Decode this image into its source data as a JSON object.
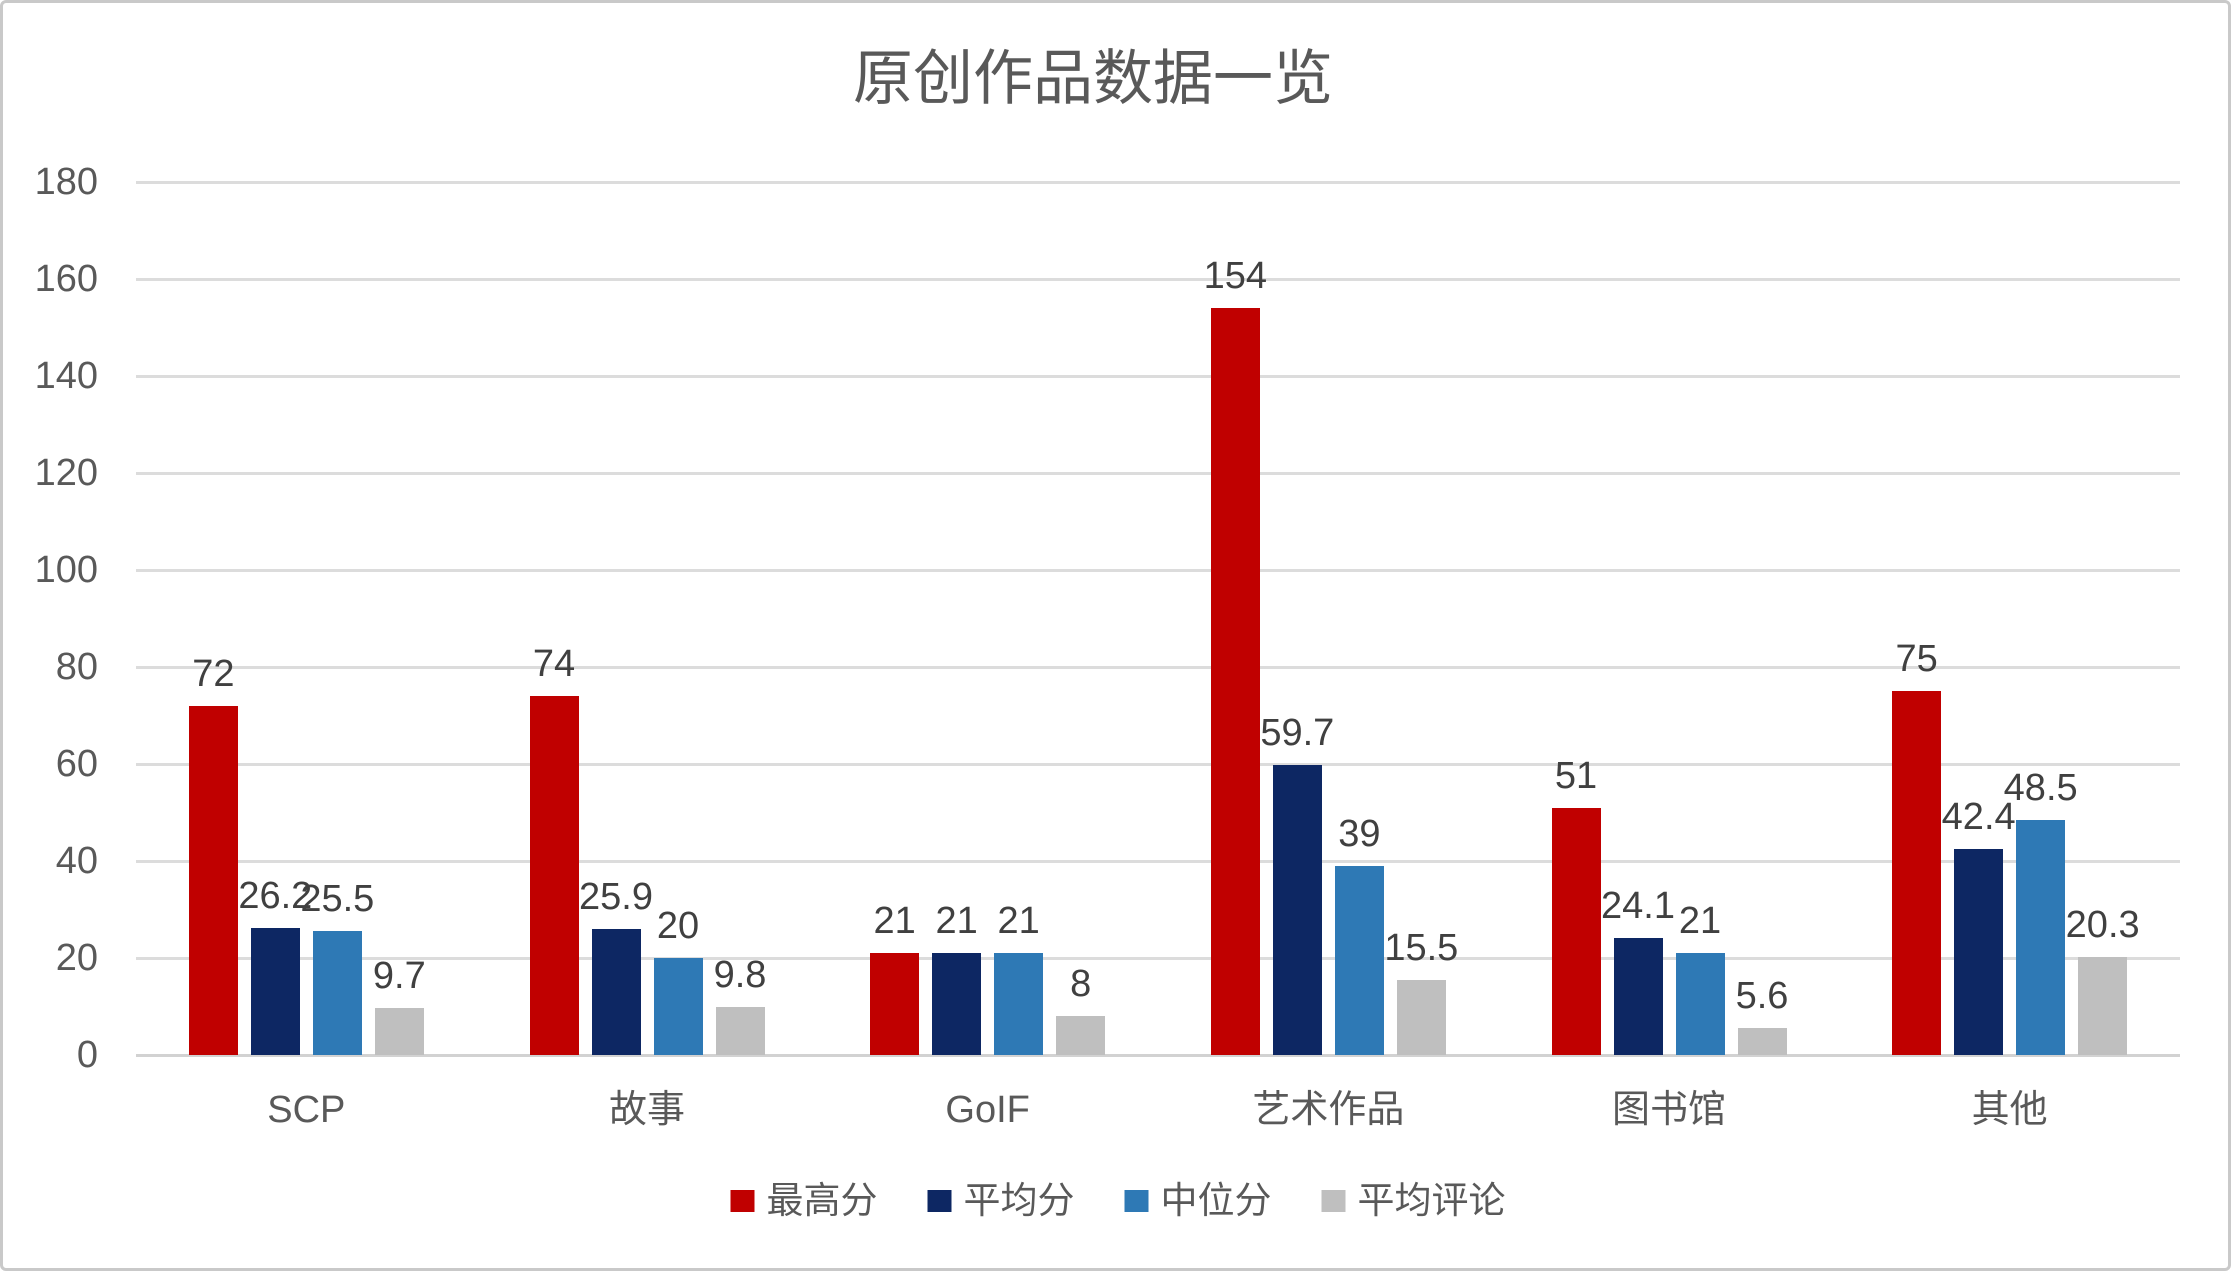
{
  "chart_data": {
    "type": "bar",
    "title": "原创作品数据一览",
    "categories": [
      "SCP",
      "故事",
      "GoIF",
      "艺术作品",
      "图书馆",
      "其他"
    ],
    "series": [
      {
        "name": "最高分",
        "color": "#C00000",
        "values": [
          72,
          74,
          21,
          154,
          51,
          75
        ]
      },
      {
        "name": "平均分",
        "color": "#0D2763",
        "values": [
          26.2,
          25.9,
          21,
          59.7,
          24.1,
          42.4
        ]
      },
      {
        "name": "中位分",
        "color": "#2E79B5",
        "values": [
          25.5,
          20,
          21,
          39,
          21,
          48.5
        ]
      },
      {
        "name": "平均评论",
        "color": "#BFBFBF",
        "values": [
          9.7,
          9.8,
          8,
          15.5,
          5.6,
          20.3
        ]
      }
    ],
    "xlabel": "",
    "ylabel": "",
    "ylim": [
      0,
      180
    ],
    "ytick_interval": 20,
    "grid": true,
    "data_labels": true,
    "legend_position": "bottom"
  },
  "colors": {
    "title_text": "#595959",
    "axis_text": "#595959",
    "data_label_text": "#404040",
    "gridline": "#DCDCDC",
    "axis_line": "#D2D2D2",
    "border": "#C9C9C9",
    "background": "#FFFFFF"
  }
}
